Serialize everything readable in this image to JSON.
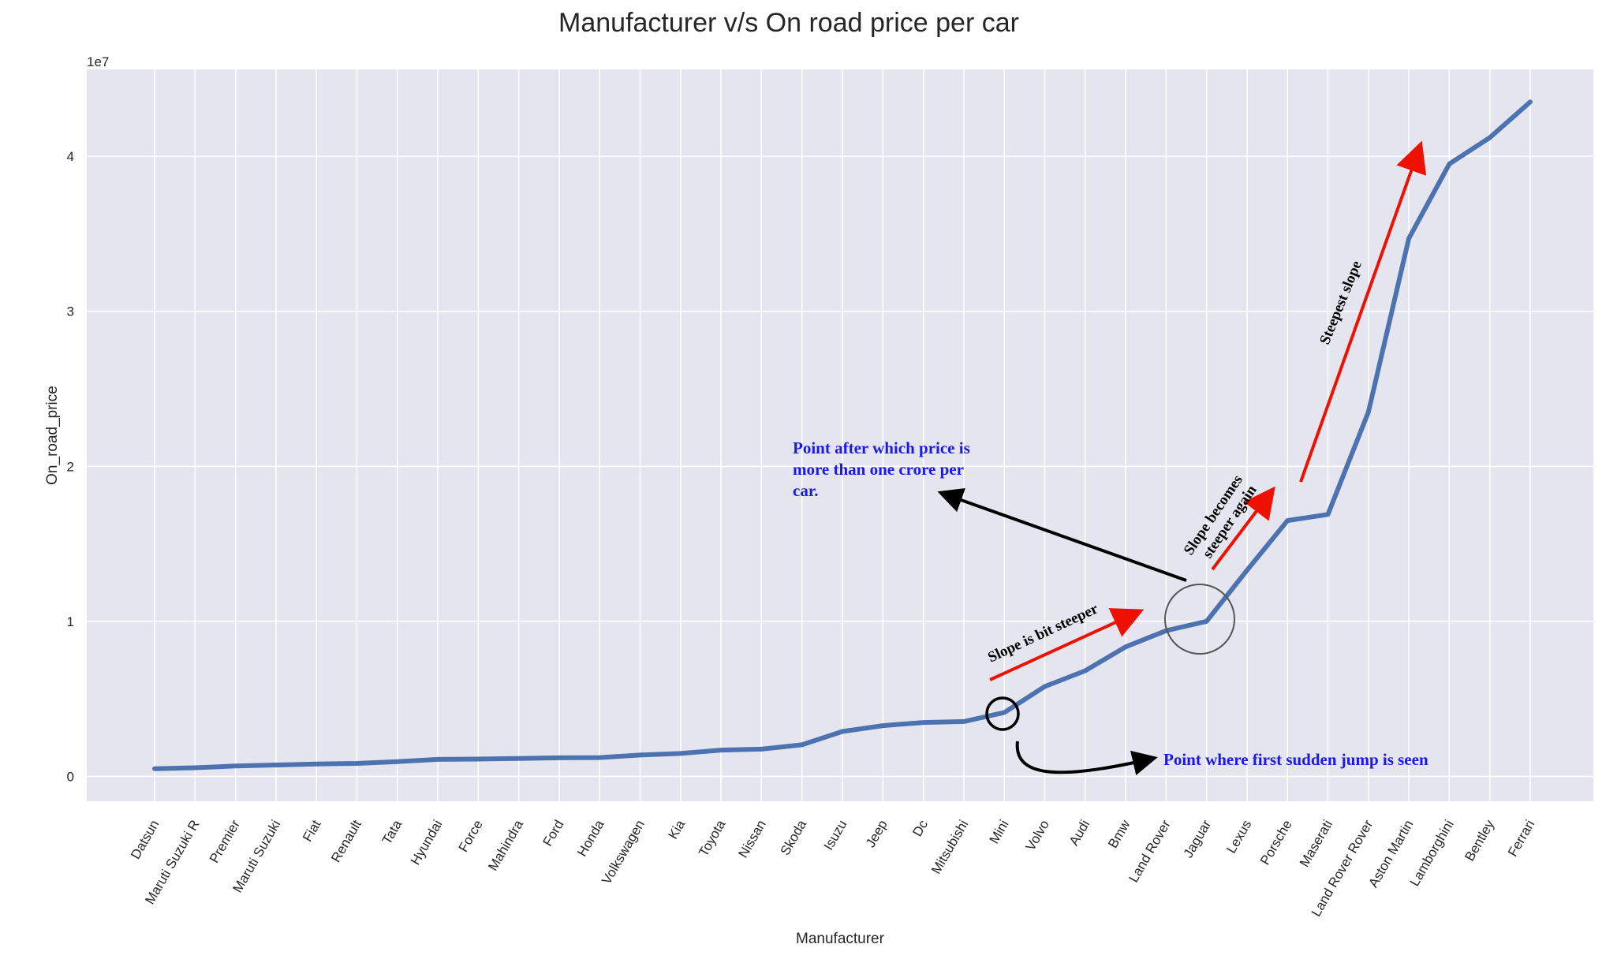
{
  "chart_data": {
    "type": "line",
    "title": "Manufacturer v/s On road price per car",
    "xlabel": "Manufacturer",
    "ylabel": "On_road_price",
    "y_offset_label": "1e7",
    "yticks": [
      0,
      1,
      2,
      3,
      4
    ],
    "ylim": [
      -1600000,
      45600000
    ],
    "grid": true,
    "series_color": "#4c72b0",
    "categories": [
      "Datsun",
      "Maruti Suzuki R",
      "Premier",
      "Maruti Suzuki",
      "Fiat",
      "Renault",
      "Tata",
      "Hyundai",
      "Force",
      "Mahindra",
      "Ford",
      "Honda",
      "Volkswagen",
      "Kia",
      "Toyota",
      "Nissan",
      "Skoda",
      "Isuzu",
      "Jeep",
      "Dc",
      "Mitsubishi",
      "Mini",
      "Volvo",
      "Audi",
      "Bmw",
      "Land Rover",
      "Jaguar",
      "Lexus",
      "Porsche",
      "Maserati",
      "Land Rover Rover",
      "Aston Martin",
      "Lamborghini",
      "Bentley",
      "Ferrari"
    ],
    "values": [
      500000,
      560000,
      680000,
      740000,
      800000,
      840000,
      960000,
      1100000,
      1120000,
      1160000,
      1200000,
      1220000,
      1380000,
      1480000,
      1700000,
      1760000,
      2040000,
      2900000,
      3280000,
      3480000,
      3540000,
      4120000,
      5800000,
      6820000,
      8360000,
      9400000,
      10000000,
      13300000,
      16500000,
      16900000,
      23500000,
      34700000,
      39500000,
      41200000,
      43500000
    ],
    "annotations": [
      {
        "text": "Point after which price is more than one crore per car.",
        "lines": [
          "Point after which price is",
          "more than one crore per",
          "car."
        ],
        "color": "#1a1ae6"
      },
      {
        "text": "Point where first sudden jump is seen",
        "color": "#1a1ae6"
      },
      {
        "text": "Slope is bit steeper",
        "color": "#000000"
      },
      {
        "text": "Slope becomes steeper again",
        "lines": [
          "Slope becomes",
          "steeper again"
        ],
        "color": "#000000"
      },
      {
        "text": "Steepest slope",
        "color": "#000000"
      }
    ],
    "colors": {
      "background": "#e5e5ef",
      "grid": "#ffffff",
      "red_arrow": "#ee1100",
      "black_arrow": "#000000"
    }
  }
}
